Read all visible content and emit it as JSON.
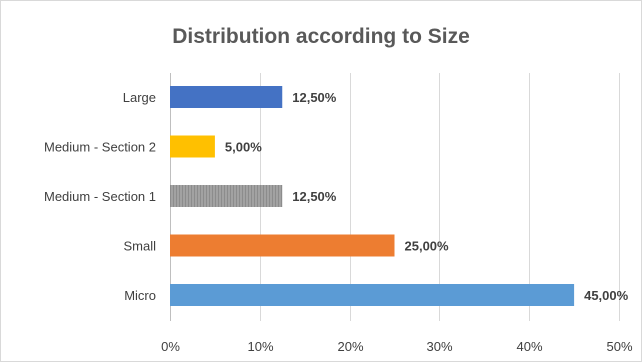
{
  "chart_data": {
    "type": "bar",
    "orientation": "horizontal",
    "title": "Distribution according to Size",
    "xlabel": "",
    "ylabel": "",
    "categories": [
      "Large",
      "Medium - Section 2",
      "Medium - Section 1",
      "Small",
      "Micro"
    ],
    "values": [
      12.5,
      5.0,
      12.5,
      25.0,
      45.0
    ],
    "data_labels": [
      "12,50%",
      "5,00%",
      "12,50%",
      "25,00%",
      "45,00%"
    ],
    "colors": [
      "#4472c4",
      "#ffc000",
      "#a5a5a5",
      "#ed7d31",
      "#5b9bd5"
    ],
    "bar_patterns": [
      "solid",
      "solid",
      "striped",
      "solid",
      "solid"
    ],
    "xlim": [
      0,
      50
    ],
    "xticks": [
      0,
      10,
      20,
      30,
      40,
      50
    ],
    "xtick_labels": [
      "0%",
      "10%",
      "20%",
      "30%",
      "40%",
      "50%"
    ],
    "grid": "vertical",
    "legend": "none"
  }
}
